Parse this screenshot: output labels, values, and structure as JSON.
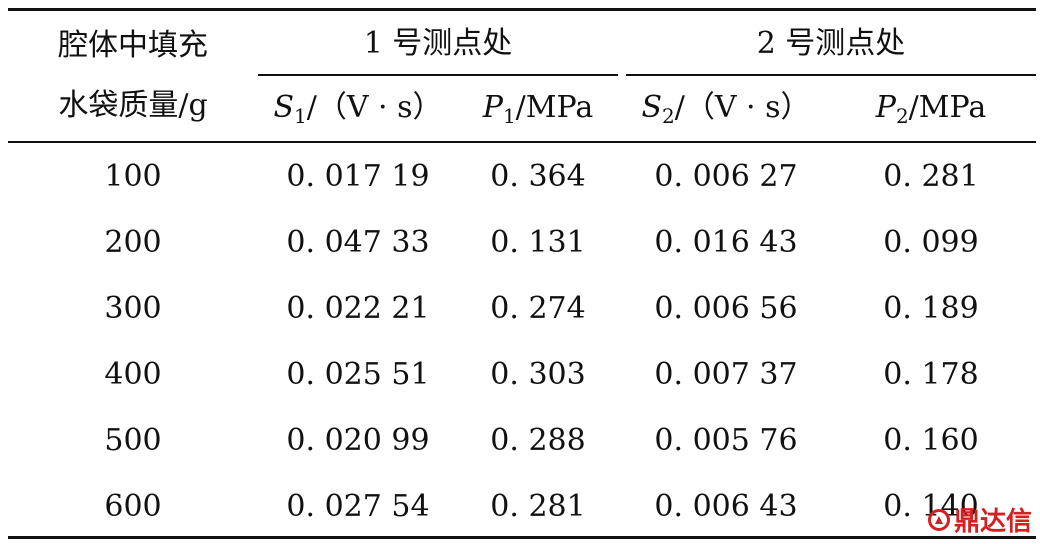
{
  "table": {
    "header": {
      "row_label_line1": "腔体中填充",
      "row_label_line2": "水袋质量/g",
      "group1": "1 号测点处",
      "group2": "2 号测点处",
      "s1": {
        "var": "S",
        "index": "1",
        "unit": "/（V · s）"
      },
      "p1": {
        "var": "P",
        "index": "1",
        "unit": "/MPa"
      },
      "s2": {
        "var": "S",
        "index": "2",
        "unit": "/（V · s）"
      },
      "p2": {
        "var": "P",
        "index": "2",
        "unit": "/MPa"
      }
    },
    "rows": [
      {
        "mass": "100",
        "s1": "0. 017 19",
        "p1": "0. 364",
        "s2": "0. 006 27",
        "p2": "0. 281"
      },
      {
        "mass": "200",
        "s1": "0. 047 33",
        "p1": "0. 131",
        "s2": "0. 016 43",
        "p2": "0. 099"
      },
      {
        "mass": "300",
        "s1": "0. 022 21",
        "p1": "0. 274",
        "s2": "0. 006 56",
        "p2": "0. 189"
      },
      {
        "mass": "400",
        "s1": "0. 025 51",
        "p1": "0. 303",
        "s2": "0. 007 37",
        "p2": "0. 178"
      },
      {
        "mass": "500",
        "s1": "0. 020 99",
        "p1": "0. 288",
        "s2": "0. 005 76",
        "p2": "0. 160"
      },
      {
        "mass": "600",
        "s1": "0. 027 54",
        "p1": "0. 281",
        "s2": "0. 006 43",
        "p2": "0. 140"
      }
    ]
  },
  "watermark": {
    "text": "鼎达信",
    "color": "#d42020"
  }
}
